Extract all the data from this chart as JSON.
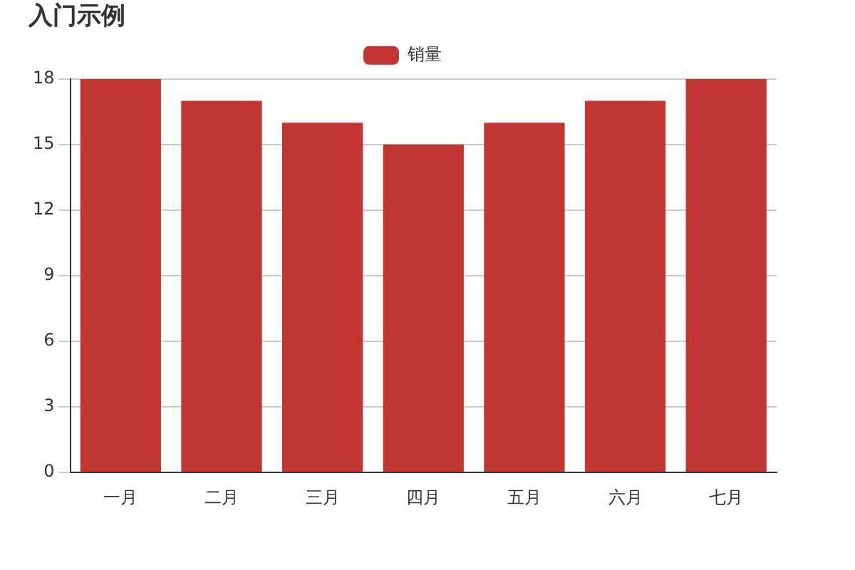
{
  "chart_data": {
    "type": "bar",
    "title": "入门示例",
    "categories": [
      "一月",
      "二月",
      "三月",
      "四月",
      "五月",
      "六月",
      "七月"
    ],
    "series": [
      {
        "name": "销量",
        "color": "#c23531",
        "values": [
          18,
          17,
          16,
          15,
          16,
          17,
          18
        ]
      }
    ],
    "ylim": [
      0,
      18
    ],
    "yticks": [
      0,
      3,
      6,
      9,
      12,
      15,
      18
    ],
    "grid": "y",
    "legend": "top"
  }
}
